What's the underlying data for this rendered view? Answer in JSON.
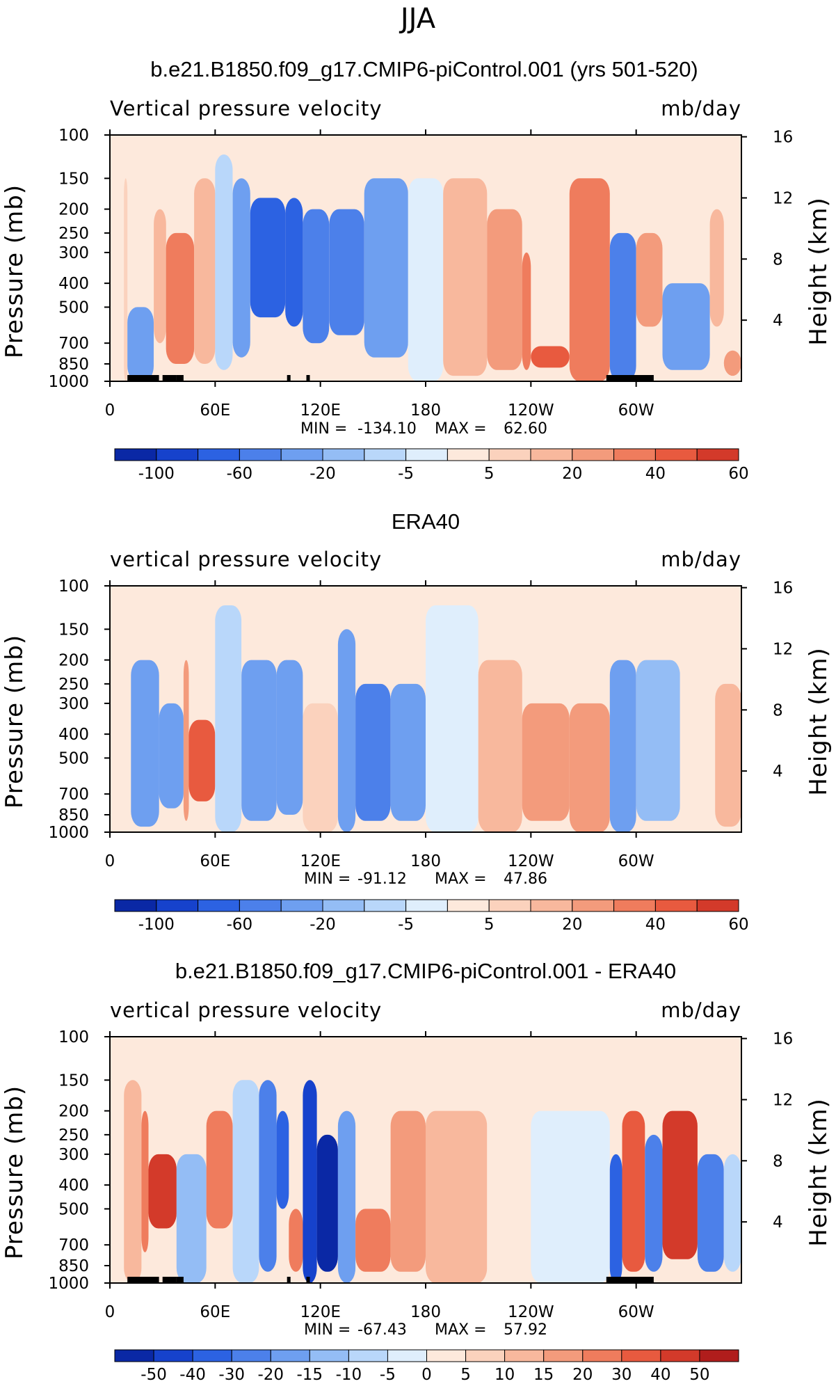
{
  "page": {
    "season": "JJA"
  },
  "colors": {
    "positive": [
      "#fde9dc",
      "#fbd2bd",
      "#f8b89d",
      "#f39b7c",
      "#ef7c5d",
      "#e85a3f",
      "#d33a2a",
      "#b01d1c",
      "#800a10"
    ],
    "negative": [
      "#dfeefc",
      "#b9d7fa",
      "#94bdf5",
      "#6e9ff0",
      "#4c80ea",
      "#2c62e2",
      "#1642cc",
      "#0a28a5",
      "#000a73"
    ],
    "land": "#000000"
  },
  "chart_data": [
    {
      "type": "heatmap",
      "title": "b.e21.B1850.f09_g17.CMIP6-piControl.001 (yrs 501-520)",
      "left_label": "Vertical pressure velocity",
      "right_label": "mb/day",
      "ylabel": "Pressure (mb)",
      "ylabel_right": "Height (km)",
      "x_ticks": [
        "0",
        "60E",
        "120E",
        "180",
        "120W",
        "60W"
      ],
      "y_ticks": [
        "100",
        "150",
        "200",
        "250",
        "300",
        "400",
        "500",
        "700",
        "850",
        "1000"
      ],
      "y_ticks_right": [
        "16",
        "12",
        "8",
        "4"
      ],
      "stats": {
        "min_label": "MIN =",
        "min": "-134.10",
        "max_label": "MAX =",
        "max": "62.60"
      },
      "colorbar_levels": [
        -120,
        -100,
        -80,
        -60,
        -40,
        -20,
        -10,
        -5,
        0,
        5,
        10,
        20,
        30,
        40,
        50,
        60
      ],
      "colorbar_labels": [
        "-100",
        "-60",
        "-20",
        "-5",
        "5",
        "20",
        "40",
        "60"
      ],
      "cells": [
        {
          "lon": 0,
          "p_top": 100,
          "p_bot": 1000,
          "v": 3
        },
        {
          "lon": 8,
          "p_top": 150,
          "p_bot": 1000,
          "v": 8
        },
        {
          "lon": 10,
          "p_top": 500,
          "p_bot": 1000,
          "v": -25
        },
        {
          "lon": 25,
          "p_top": 200,
          "p_bot": 700,
          "v": 12
        },
        {
          "lon": 32,
          "p_top": 250,
          "p_bot": 850,
          "v": 35
        },
        {
          "lon": 48,
          "p_top": 150,
          "p_bot": 850,
          "v": 15
        },
        {
          "lon": 60,
          "p_top": 120,
          "p_bot": 900,
          "v": -8
        },
        {
          "lon": 70,
          "p_top": 150,
          "p_bot": 800,
          "v": -40
        },
        {
          "lon": 80,
          "p_top": 180,
          "p_bot": 550,
          "v": -70
        },
        {
          "lon": 100,
          "p_top": 180,
          "p_bot": 600,
          "v": -70
        },
        {
          "lon": 110,
          "p_top": 200,
          "p_bot": 700,
          "v": -60
        },
        {
          "lon": 125,
          "p_top": 200,
          "p_bot": 650,
          "v": -55
        },
        {
          "lon": 145,
          "p_top": 150,
          "p_bot": 800,
          "v": -35
        },
        {
          "lon": 170,
          "p_top": 150,
          "p_bot": 1000,
          "v": -5
        },
        {
          "lon": 190,
          "p_top": 150,
          "p_bot": 950,
          "v": 10
        },
        {
          "lon": 215,
          "p_top": 200,
          "p_bot": 900,
          "v": 22
        },
        {
          "lon": 235,
          "p_top": 300,
          "p_bot": 900,
          "v": 32
        },
        {
          "lon": 240,
          "p_top": 720,
          "p_bot": 880,
          "v": 42
        },
        {
          "lon": 262,
          "p_top": 150,
          "p_bot": 1000,
          "v": 30
        },
        {
          "lon": 285,
          "p_top": 250,
          "p_bot": 1000,
          "v": -45
        },
        {
          "lon": 300,
          "p_top": 250,
          "p_bot": 600,
          "v": 25
        },
        {
          "lon": 315,
          "p_top": 400,
          "p_bot": 900,
          "v": -25
        },
        {
          "lon": 342,
          "p_top": 200,
          "p_bot": 600,
          "v": 12
        },
        {
          "lon": 350,
          "p_top": 750,
          "p_bot": 950,
          "v": 20
        }
      ],
      "land": [
        [
          10,
          28
        ],
        [
          30,
          38
        ],
        [
          38,
          42
        ],
        [
          101,
          103
        ],
        [
          112,
          114
        ],
        [
          283,
          310
        ]
      ]
    },
    {
      "type": "heatmap",
      "title": "ERA40",
      "left_label": "vertical pressure velocity",
      "right_label": "mb/day",
      "ylabel": "Pressure (mb)",
      "ylabel_right": "Height (km)",
      "x_ticks": [
        "0",
        "60E",
        "120E",
        "180",
        "120W",
        "60W"
      ],
      "y_ticks": [
        "100",
        "150",
        "200",
        "250",
        "300",
        "400",
        "500",
        "700",
        "850",
        "1000"
      ],
      "y_ticks_right": [
        "16",
        "12",
        "8",
        "4"
      ],
      "stats": {
        "min_label": "MIN =",
        "min": "-91.12",
        "max_label": "MAX =",
        "max": "47.86"
      },
      "colorbar_levels": [
        -120,
        -100,
        -80,
        -60,
        -40,
        -20,
        -10,
        -5,
        0,
        5,
        10,
        20,
        30,
        40,
        50,
        60
      ],
      "colorbar_labels": [
        "-100",
        "-60",
        "-20",
        "-5",
        "5",
        "20",
        "40",
        "60"
      ],
      "cells": [
        {
          "lon": 0,
          "p_top": 100,
          "p_bot": 1000,
          "v": 4
        },
        {
          "lon": 12,
          "p_top": 200,
          "p_bot": 950,
          "v": -30
        },
        {
          "lon": 28,
          "p_top": 300,
          "p_bot": 800,
          "v": -35
        },
        {
          "lon": 42,
          "p_top": 200,
          "p_bot": 900,
          "v": 20
        },
        {
          "lon": 45,
          "p_top": 350,
          "p_bot": 750,
          "v": 40
        },
        {
          "lon": 60,
          "p_top": 120,
          "p_bot": 1000,
          "v": -10
        },
        {
          "lon": 75,
          "p_top": 200,
          "p_bot": 900,
          "v": -35
        },
        {
          "lon": 95,
          "p_top": 200,
          "p_bot": 850,
          "v": -40
        },
        {
          "lon": 110,
          "p_top": 300,
          "p_bot": 1000,
          "v": 8
        },
        {
          "lon": 130,
          "p_top": 150,
          "p_bot": 1000,
          "v": -30
        },
        {
          "lon": 140,
          "p_top": 250,
          "p_bot": 900,
          "v": -55
        },
        {
          "lon": 160,
          "p_top": 250,
          "p_bot": 900,
          "v": -40
        },
        {
          "lon": 180,
          "p_top": 120,
          "p_bot": 1000,
          "v": -5
        },
        {
          "lon": 210,
          "p_top": 200,
          "p_bot": 1000,
          "v": 12
        },
        {
          "lon": 235,
          "p_top": 300,
          "p_bot": 900,
          "v": 25
        },
        {
          "lon": 262,
          "p_top": 300,
          "p_bot": 1000,
          "v": 28
        },
        {
          "lon": 285,
          "p_top": 200,
          "p_bot": 1000,
          "v": -40
        },
        {
          "lon": 300,
          "p_top": 200,
          "p_bot": 900,
          "v": -20
        },
        {
          "lon": 325,
          "p_top": 200,
          "p_bot": 1000,
          "v": 4
        },
        {
          "lon": 345,
          "p_top": 250,
          "p_bot": 950,
          "v": 18
        }
      ],
      "land": []
    },
    {
      "type": "heatmap",
      "title": "b.e21.B1850.f09_g17.CMIP6-piControl.001 - ERA40",
      "left_label": "vertical pressure velocity",
      "right_label": "mb/day",
      "ylabel": "Pressure (mb)",
      "ylabel_right": "Height (km)",
      "x_ticks": [
        "0",
        "60E",
        "120E",
        "180",
        "120W",
        "60W"
      ],
      "y_ticks": [
        "100",
        "150",
        "200",
        "250",
        "300",
        "400",
        "500",
        "700",
        "850",
        "1000"
      ],
      "y_ticks_right": [
        "16",
        "12",
        "8",
        "4"
      ],
      "stats": {
        "min_label": "MIN =",
        "min": "-67.43",
        "max_label": "MAX =",
        "max": "57.92"
      },
      "colorbar_levels": [
        -60,
        -50,
        -40,
        -30,
        -20,
        -15,
        -10,
        -5,
        0,
        5,
        10,
        15,
        20,
        30,
        40,
        50,
        60
      ],
      "colorbar_labels": [
        "-50",
        "-40",
        "-30",
        "-20",
        "-15",
        "-10",
        "-5",
        "0",
        "5",
        "10",
        "15",
        "20",
        "30",
        "40",
        "50"
      ],
      "cells": [
        {
          "lon": 0,
          "p_top": 100,
          "p_bot": 1000,
          "v": 3
        },
        {
          "lon": 8,
          "p_top": 150,
          "p_bot": 1000,
          "v": 12
        },
        {
          "lon": 18,
          "p_top": 200,
          "p_bot": 750,
          "v": 28
        },
        {
          "lon": 22,
          "p_top": 300,
          "p_bot": 600,
          "v": 45
        },
        {
          "lon": 38,
          "p_top": 300,
          "p_bot": 1000,
          "v": -15
        },
        {
          "lon": 55,
          "p_top": 200,
          "p_bot": 600,
          "v": 20
        },
        {
          "lon": 70,
          "p_top": 150,
          "p_bot": 1000,
          "v": -10
        },
        {
          "lon": 85,
          "p_top": 150,
          "p_bot": 900,
          "v": -25
        },
        {
          "lon": 95,
          "p_top": 200,
          "p_bot": 500,
          "v": -35
        },
        {
          "lon": 102,
          "p_top": 500,
          "p_bot": 900,
          "v": 25
        },
        {
          "lon": 110,
          "p_top": 150,
          "p_bot": 1000,
          "v": -45
        },
        {
          "lon": 118,
          "p_top": 250,
          "p_bot": 900,
          "v": -60
        },
        {
          "lon": 130,
          "p_top": 200,
          "p_bot": 1000,
          "v": -20
        },
        {
          "lon": 140,
          "p_top": 500,
          "p_bot": 900,
          "v": 20
        },
        {
          "lon": 160,
          "p_top": 200,
          "p_bot": 900,
          "v": 18
        },
        {
          "lon": 180,
          "p_top": 200,
          "p_bot": 1000,
          "v": 10
        },
        {
          "lon": 215,
          "p_top": 200,
          "p_bot": 1000,
          "v": 4
        },
        {
          "lon": 240,
          "p_top": 200,
          "p_bot": 1000,
          "v": -4
        },
        {
          "lon": 285,
          "p_top": 300,
          "p_bot": 1000,
          "v": -40
        },
        {
          "lon": 292,
          "p_top": 200,
          "p_bot": 900,
          "v": 35
        },
        {
          "lon": 305,
          "p_top": 250,
          "p_bot": 900,
          "v": -30
        },
        {
          "lon": 315,
          "p_top": 200,
          "p_bot": 800,
          "v": 40
        },
        {
          "lon": 335,
          "p_top": 300,
          "p_bot": 900,
          "v": -25
        },
        {
          "lon": 350,
          "p_top": 300,
          "p_bot": 900,
          "v": -8
        }
      ],
      "land": [
        [
          10,
          28
        ],
        [
          30,
          38
        ],
        [
          38,
          42
        ],
        [
          101,
          103
        ],
        [
          112,
          114
        ],
        [
          283,
          310
        ]
      ]
    }
  ]
}
